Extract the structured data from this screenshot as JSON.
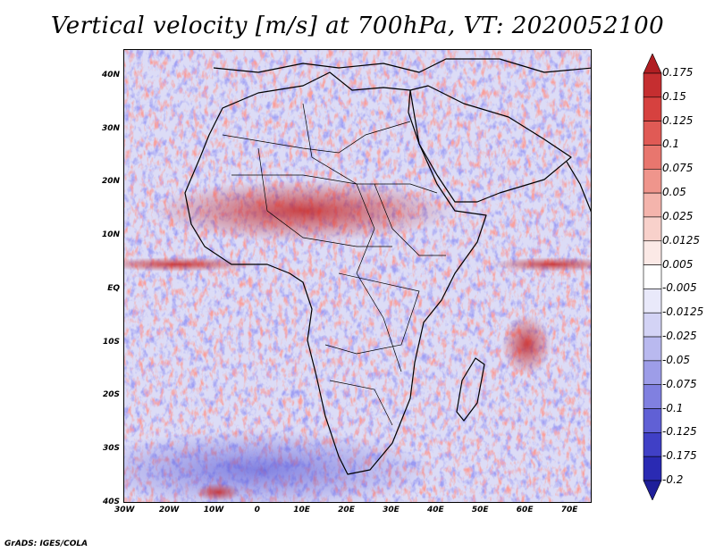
{
  "title": "Vertical velocity [m/s] at 700hPa, VT: 2020052100",
  "footer": "GrADS: IGES/COLA",
  "map": {
    "lon_range": [
      -30,
      75
    ],
    "lat_range": [
      -40,
      45
    ],
    "lon_ticks": [
      {
        "value": -30,
        "label": "30W"
      },
      {
        "value": -20,
        "label": "20W"
      },
      {
        "value": -10,
        "label": "10W"
      },
      {
        "value": 0,
        "label": "0"
      },
      {
        "value": 10,
        "label": "10E"
      },
      {
        "value": 20,
        "label": "20E"
      },
      {
        "value": 30,
        "label": "30E"
      },
      {
        "value": 40,
        "label": "40E"
      },
      {
        "value": 50,
        "label": "50E"
      },
      {
        "value": 60,
        "label": "60E"
      },
      {
        "value": 70,
        "label": "70E"
      }
    ],
    "lat_ticks": [
      {
        "value": 40,
        "label": "40N"
      },
      {
        "value": 30,
        "label": "30N"
      },
      {
        "value": 20,
        "label": "20N"
      },
      {
        "value": 10,
        "label": "10N"
      },
      {
        "value": 0,
        "label": "EQ"
      },
      {
        "value": -10,
        "label": "10S"
      },
      {
        "value": -20,
        "label": "20S"
      },
      {
        "value": -30,
        "label": "30S"
      },
      {
        "value": -40,
        "label": "40S"
      }
    ]
  },
  "colorbar": {
    "labels": [
      "0.175",
      "0.15",
      "0.125",
      "0.1",
      "0.075",
      "0.05",
      "0.025",
      "0.0125",
      "0.005",
      "-0.005",
      "-0.0125",
      "-0.025",
      "-0.05",
      "-0.075",
      "-0.1",
      "-0.125",
      "-0.175",
      "-0.2"
    ],
    "colors": [
      "#b01e22",
      "#c52e30",
      "#d6413f",
      "#e05a55",
      "#e8766e",
      "#ef958c",
      "#f4b4ac",
      "#f8d1cb",
      "#fbe9e6",
      "#ffffff",
      "#e9e9fa",
      "#d3d3f5",
      "#b9b9ef",
      "#9d9de8",
      "#8080e0",
      "#6060d5",
      "#4040c6",
      "#2a2ab3",
      "#1f1f9a"
    ]
  }
}
